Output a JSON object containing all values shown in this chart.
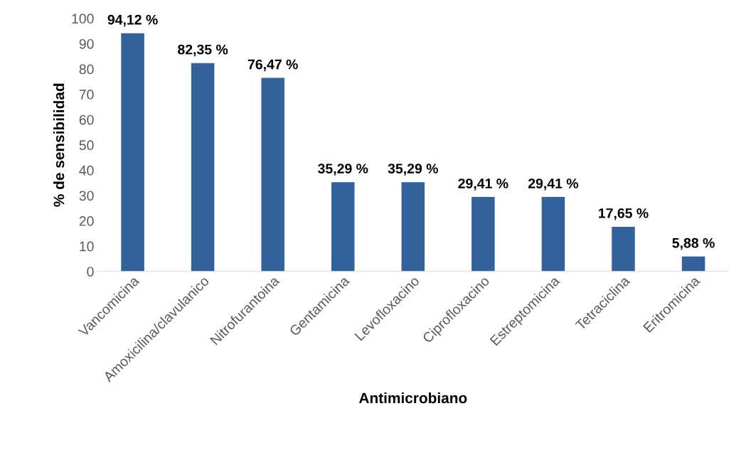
{
  "chart_data": {
    "type": "bar",
    "xlabel": "Antimicrobiano",
    "ylabel": "% de sensibilidad",
    "categories": [
      "Vancomicina",
      "Amoxicilina/clavulanico",
      "Nitrofurantoina",
      "Gentamicina",
      "Levofloxacino",
      "Ciprofloxacino",
      "Estreptomicina",
      "Tetraciclina",
      "Eritromicina"
    ],
    "values": [
      94.12,
      82.35,
      76.47,
      35.29,
      35.29,
      29.41,
      29.41,
      17.65,
      5.88
    ],
    "value_labels": [
      "94,12 %",
      "82,35 %",
      "76,47 %",
      "35,29 %",
      "35,29 %",
      "29,41 %",
      "29,41 %",
      "17,65 %",
      "5,88 %"
    ],
    "color": "#33619c",
    "ylim": [
      0,
      100
    ],
    "yticks": [
      0,
      10,
      20,
      30,
      40,
      50,
      60,
      70,
      80,
      90,
      100
    ],
    "grid": false,
    "legend": false
  }
}
